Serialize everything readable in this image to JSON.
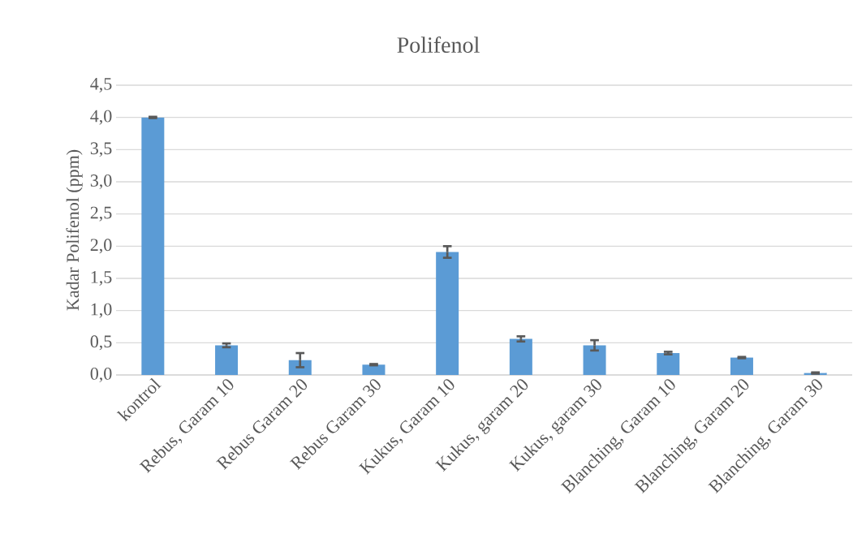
{
  "chart_data": {
    "type": "bar",
    "title": "Polifenol",
    "ylabel": "Kadar Polifenol (ppm)",
    "categories": [
      "kontrol",
      "Rebus, Garam 10",
      "Rebus Garam 20",
      "Rebus Garam 30",
      "Kukus, Garam 10",
      "Kukus, garam 20",
      "Kukus, garam 30",
      "Blanching, Garam 10",
      "Blanching, Garam 20",
      "Blanching, Garam 30"
    ],
    "values": [
      4.0,
      0.46,
      0.23,
      0.16,
      1.91,
      0.56,
      0.46,
      0.34,
      0.27,
      0.03
    ],
    "errors": [
      0.01,
      0.03,
      0.11,
      0.01,
      0.09,
      0.04,
      0.08,
      0.02,
      0.01,
      0.01
    ],
    "color": "#5b9bd5",
    "ylim": [
      0,
      4.5
    ],
    "yticks": [
      {
        "value": 0,
        "label": "0,0"
      },
      {
        "value": 0.5,
        "label": "0,5"
      },
      {
        "value": 1,
        "label": "1,0"
      },
      {
        "value": 1.5,
        "label": "1,5"
      },
      {
        "value": 2,
        "label": "2,0"
      },
      {
        "value": 2.5,
        "label": "2,5"
      },
      {
        "value": 3,
        "label": "3,0"
      },
      {
        "value": 3.5,
        "label": "3,5"
      },
      {
        "value": 4,
        "label": "4,0"
      },
      {
        "value": 4.5,
        "label": "4,5"
      }
    ],
    "grid": true
  }
}
